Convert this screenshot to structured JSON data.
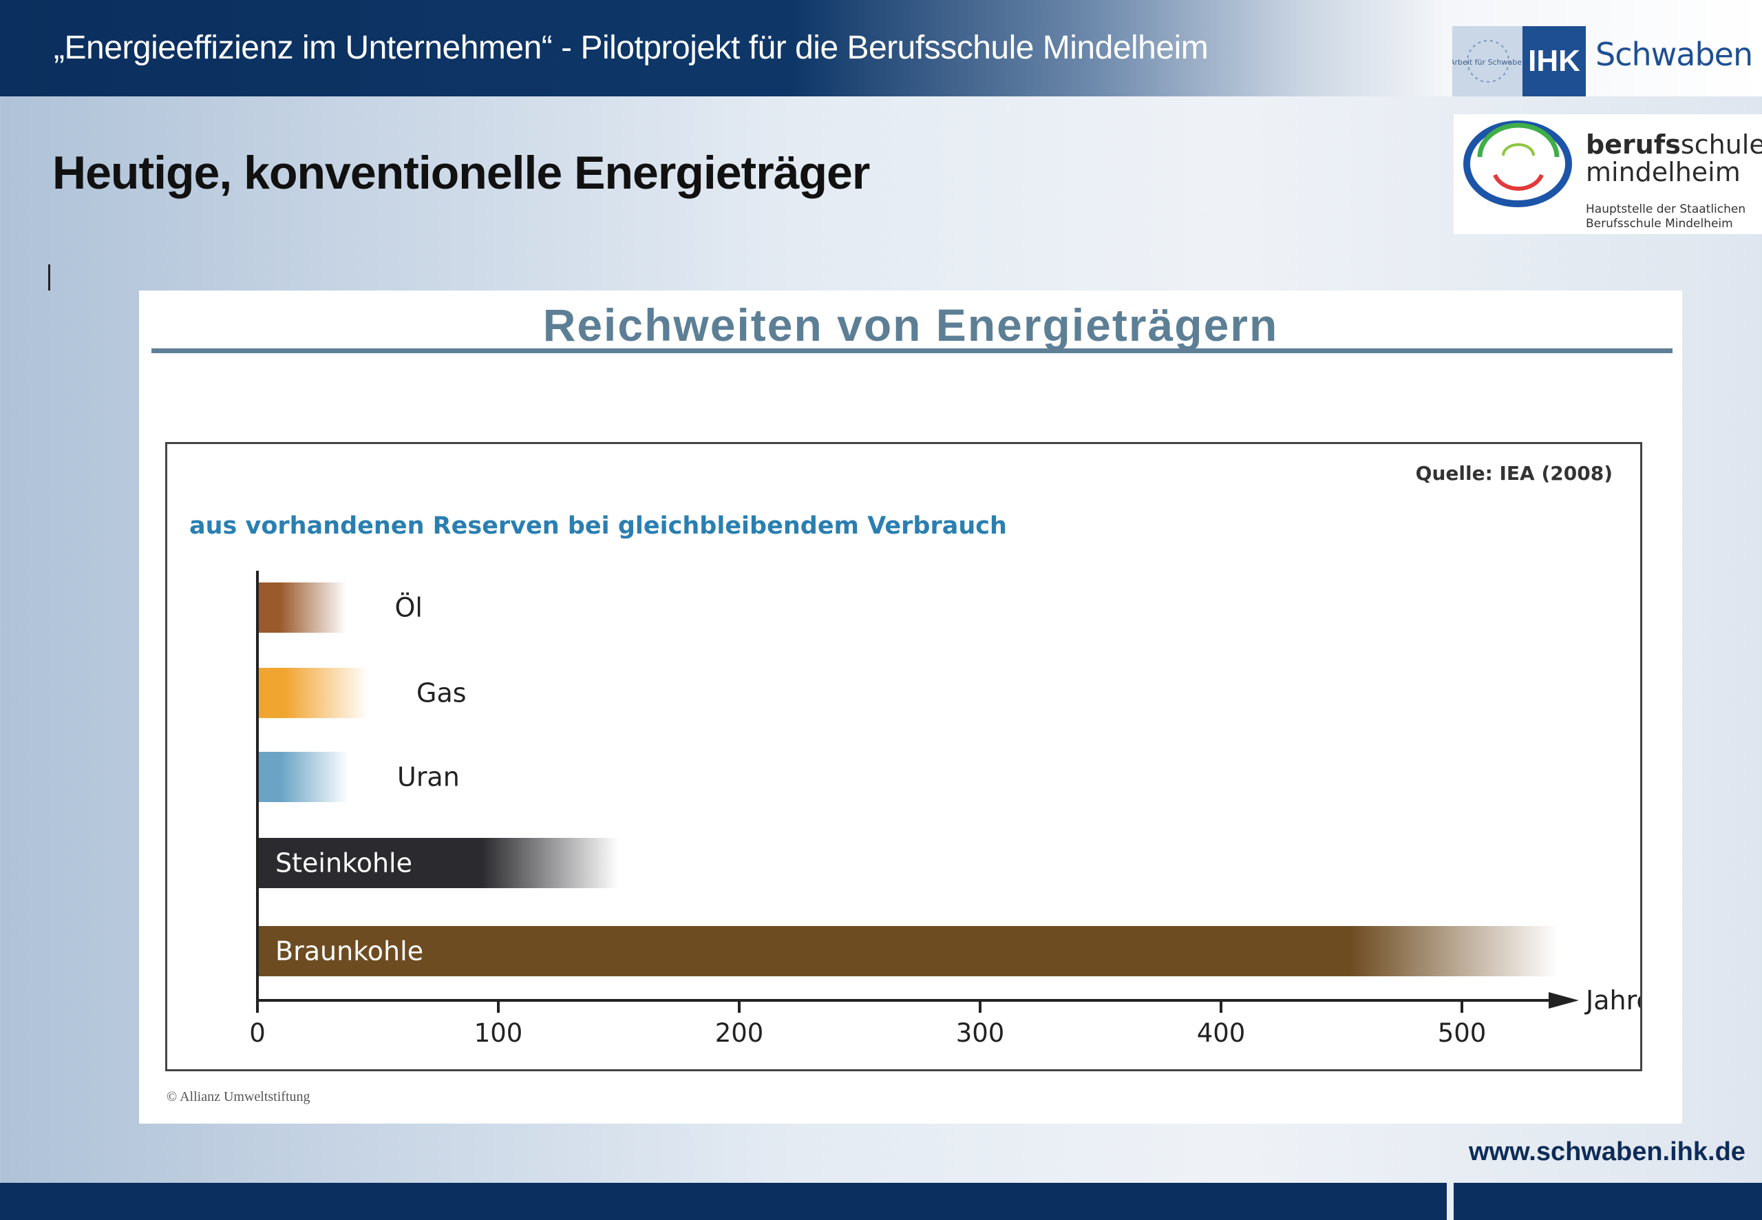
{
  "header": {
    "title": "„Energieeffizienz im Unternehmen“ - Pilotprojekt für die Berufsschule Mindelheim",
    "ihk_logo": {
      "seal_text": "Arbeit für Schwaben",
      "box_label": "IHK",
      "name": "Schwaben",
      "color": "#1e4f92"
    },
    "school_logo": {
      "name_bold": "berufs",
      "name_rest": "schule",
      "name_line2": "mindelheim",
      "sub_line1": "Hauptstelle der Staatlichen",
      "sub_line2": "Berufsschule Mindelheim"
    }
  },
  "slide": {
    "title": "Heutige, konventionelle Energieträger"
  },
  "card": {
    "title": "Reichweiten von Energieträgern",
    "credit": "© Allianz Umweltstiftung"
  },
  "footer": {
    "website": "www.schwaben.ihk.de"
  },
  "chart_data": {
    "type": "bar",
    "orientation": "horizontal",
    "subtitle": "aus vorhandenen Reserven bei gleichbleibendem Verbrauch",
    "source": "Quelle: IEA (2008)",
    "xlabel": "Jahre",
    "xlim": [
      0,
      540
    ],
    "xticks": [
      0,
      100,
      200,
      300,
      400,
      500
    ],
    "grid": false,
    "categories": [
      "Öl",
      "Gas",
      "Uran",
      "Steinkohle",
      "Braunkohle"
    ],
    "values": [
      37,
      46,
      38,
      150,
      540
    ],
    "colors": [
      "#9a5a2c",
      "#f1a531",
      "#6aa3c4",
      "#2b2b2f",
      "#6e4c22"
    ],
    "label_inside": [
      false,
      false,
      false,
      true,
      true
    ]
  }
}
